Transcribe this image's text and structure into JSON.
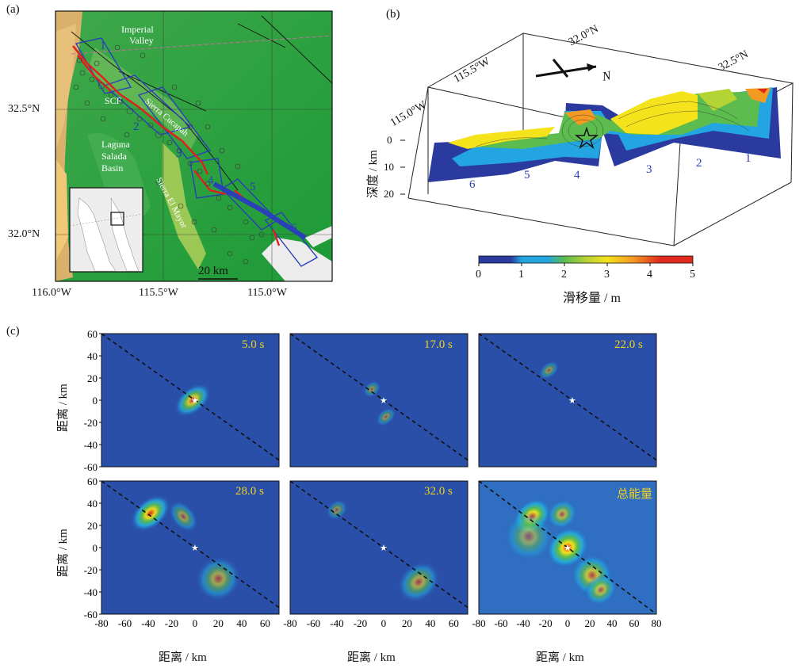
{
  "figure": {
    "panel_a": {
      "label": "(a)",
      "place_labels": {
        "imperial_valley_1": "Imperial",
        "imperial_valley_2": "Valley",
        "scf": "SCF",
        "laguna_1": "Laguna",
        "laguna_2": "Salada",
        "laguna_3": "Basin",
        "sierra_cucapah": "Sierra Cucapah",
        "sierra_el_mayor": "Sierra El Mayor",
        "scale": "20 km"
      },
      "segment_numbers": [
        "1",
        "2",
        "3",
        "4",
        "5",
        "6"
      ],
      "lat_ticks": [
        "32.5°N",
        "32.0°N"
      ],
      "lon_ticks": [
        "116.0°W",
        "115.5°W",
        "115.0°W"
      ],
      "colors": {
        "land": "#29a33d",
        "highland": "#e7b566",
        "sea": "#ececec"
      }
    },
    "panel_b": {
      "label": "(b)",
      "lon_ticks": [
        "115.0°W",
        "115.5°W"
      ],
      "lat_ticks": [
        "32.0°N",
        "32.5°N"
      ],
      "north_label": "N",
      "depth_label": "深度 / km",
      "depth_ticks": [
        "0",
        "10",
        "20"
      ],
      "segment_numbers": [
        "1",
        "2",
        "3",
        "4",
        "5",
        "6"
      ],
      "colorbar_ticks": [
        "0",
        "1",
        "2",
        "3",
        "4",
        "5"
      ],
      "colorbar_label": "滑移量 / m",
      "colorbar_colors": [
        "#2b3a9e",
        "#22a5e0",
        "#5cbc4e",
        "#b4d335",
        "#f4e21b",
        "#f49a22",
        "#e0281c"
      ]
    },
    "panel_c": {
      "label": "(c)",
      "ylabel": "距离 / km",
      "xlabel": "距离 / km",
      "y_ticks": [
        "60",
        "40",
        "20",
        "0",
        "-20",
        "-40",
        "-60"
      ],
      "x_ticks": [
        "-80",
        "-60",
        "-40",
        "-20",
        "0",
        "20",
        "40",
        "60"
      ],
      "x_ticks_last": [
        "-80",
        "-60",
        "-40",
        "-20",
        "0",
        "20",
        "40",
        "60",
        "80"
      ],
      "panels": [
        {
          "time": "5.0 s",
          "blobs": [
            {
              "x": -2,
              "y": 0,
              "a": 11,
              "b": 7,
              "peak": 3.6
            }
          ]
        },
        {
          "time": "17.0 s",
          "blobs": [
            {
              "x": -10,
              "y": 10,
              "a": 5,
              "b": 4,
              "peak": 1.0
            },
            {
              "x": 2,
              "y": -15,
              "a": 6,
              "b": 4,
              "peak": 1.0
            }
          ]
        },
        {
          "time": "22.0 s",
          "blobs": [
            {
              "x": -20,
              "y": 27,
              "a": 6,
              "b": 4,
              "peak": 1.2
            }
          ]
        },
        {
          "time": "28.0 s",
          "blobs": [
            {
              "x": -38,
              "y": 31,
              "a": 12,
              "b": 8,
              "peak": 4.5
            },
            {
              "x": -10,
              "y": 28,
              "a": 6,
              "b": 10,
              "peak": 1.5
            },
            {
              "x": 20,
              "y": -28,
              "a": 12,
              "b": 12,
              "peak": 1.8
            }
          ]
        },
        {
          "time": "32.0 s",
          "blobs": [
            {
              "x": -40,
              "y": 34,
              "a": 6,
              "b": 5,
              "peak": 0.9
            },
            {
              "x": 30,
              "y": -31,
              "a": 12,
              "b": 10,
              "peak": 2.0
            }
          ]
        },
        {
          "time": "总能量",
          "blobs": [
            {
              "x": -32,
              "y": 28,
              "a": 12,
              "b": 9,
              "peak": 4.7
            },
            {
              "x": -5,
              "y": 30,
              "a": 9,
              "b": 8,
              "peak": 2.2
            },
            {
              "x": 0,
              "y": 0,
              "a": 13,
              "b": 11,
              "peak": 4.8
            },
            {
              "x": 22,
              "y": -25,
              "a": 12,
              "b": 12,
              "peak": 3.0
            },
            {
              "x": 30,
              "y": -38,
              "a": 10,
              "b": 8,
              "peak": 2.4
            },
            {
              "x": -35,
              "y": 10,
              "a": 14,
              "b": 14,
              "peak": 1.0
            }
          ]
        }
      ]
    }
  }
}
